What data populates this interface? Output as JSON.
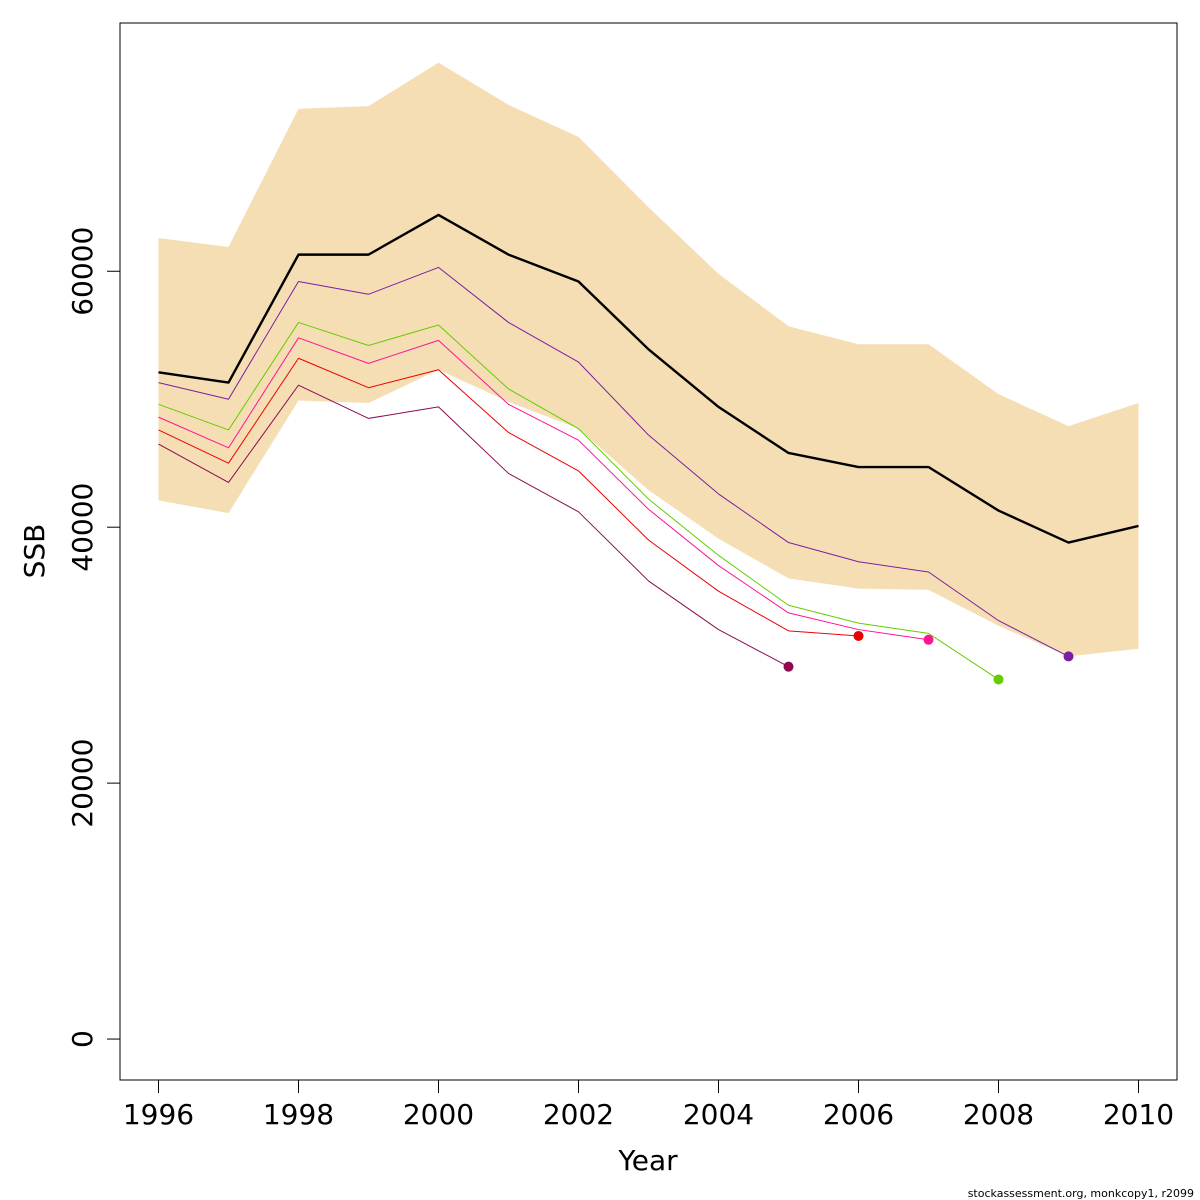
{
  "chart_data": {
    "type": "line",
    "title": "",
    "xlabel": "Year",
    "ylabel": "SSB",
    "xlim": [
      1995.45,
      2010.55
    ],
    "ylim": [
      -3200,
      79400
    ],
    "x_ticks": [
      1996,
      1998,
      2000,
      2002,
      2004,
      2006,
      2008,
      2010
    ],
    "y_ticks": [
      0,
      20000,
      40000,
      60000
    ],
    "grid": false,
    "legend": "none",
    "confidence_band": {
      "color": "#f5deb3",
      "x": [
        1996,
        1997,
        1998,
        1999,
        2000,
        2001,
        2002,
        2003,
        2004,
        2005,
        2006,
        2007,
        2008,
        2009,
        2010
      ],
      "upper": [
        62600,
        61900,
        72700,
        72900,
        76300,
        73000,
        70500,
        65000,
        59800,
        55700,
        54300,
        54300,
        50400,
        47900,
        49700
      ],
      "lower": [
        42100,
        41100,
        49900,
        49700,
        52300,
        49800,
        47700,
        42900,
        39100,
        36000,
        35200,
        35100,
        32300,
        29900,
        30500
      ]
    },
    "series": [
      {
        "color": "#000000",
        "width": 2.4,
        "x": [
          1996,
          1997,
          1998,
          1999,
          2000,
          2001,
          2002,
          2003,
          2004,
          2005,
          2006,
          2007,
          2008,
          2009,
          2010
        ],
        "values": [
          52100,
          51300,
          61300,
          61300,
          64400,
          61300,
          59200,
          53900,
          49400,
          45800,
          44700,
          44700,
          41300,
          38800,
          40100
        ]
      },
      {
        "color": "#7a1fa2",
        "width": 1,
        "end_point": true,
        "x": [
          1996,
          1997,
          1998,
          1999,
          2000,
          2001,
          2002,
          2003,
          2004,
          2005,
          2006,
          2007,
          2008,
          2009
        ],
        "values": [
          51300,
          50000,
          59200,
          58200,
          60300,
          56000,
          52900,
          47200,
          42600,
          38800,
          37300,
          36500,
          32700,
          29900
        ]
      },
      {
        "color": "#66cc00",
        "width": 1,
        "end_point": true,
        "x": [
          1996,
          1997,
          1998,
          1999,
          2000,
          2001,
          2002,
          2003,
          2004,
          2005,
          2006,
          2007,
          2008
        ],
        "values": [
          49600,
          47600,
          56000,
          54200,
          55800,
          50800,
          47700,
          42200,
          37800,
          33900,
          32500,
          31700,
          28100
        ]
      },
      {
        "color": "#ff1493",
        "width": 1,
        "end_point": true,
        "x": [
          1996,
          1997,
          1998,
          1999,
          2000,
          2001,
          2002,
          2003,
          2004,
          2005,
          2006,
          2007
        ],
        "values": [
          48600,
          46200,
          54800,
          52800,
          54600,
          49600,
          46800,
          41400,
          37000,
          33300,
          32000,
          31200
        ]
      },
      {
        "color": "#ee0000",
        "width": 1,
        "end_point": true,
        "x": [
          1996,
          1997,
          1998,
          1999,
          2000,
          2001,
          2002,
          2003,
          2004,
          2005,
          2006
        ],
        "values": [
          47600,
          45000,
          53200,
          50900,
          52300,
          47400,
          44400,
          39000,
          35000,
          31900,
          31500
        ]
      },
      {
        "color": "#8b0a50",
        "width": 1,
        "end_point": true,
        "x": [
          1996,
          1997,
          1998,
          1999,
          2000,
          2001,
          2002,
          2003,
          2004,
          2005
        ],
        "values": [
          46500,
          43500,
          51100,
          48500,
          49400,
          44200,
          41200,
          35800,
          32000,
          29100
        ]
      }
    ],
    "annotation": "stockassessment.org, monkcopy1, r2099"
  }
}
